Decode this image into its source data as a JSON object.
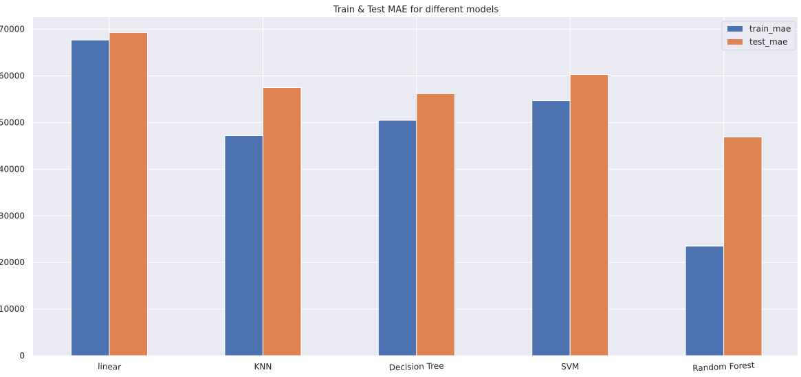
{
  "chart_data": {
    "type": "bar",
    "title": "Train & Test MAE for different models",
    "xlabel": "",
    "ylabel": "",
    "categories": [
      "linear",
      "KNN",
      "Decision Tree",
      "SVM",
      "Random Forest"
    ],
    "series": [
      {
        "name": "train_mae",
        "color": "#4c72b0",
        "values": [
          67700,
          47200,
          50500,
          54700,
          23500
        ]
      },
      {
        "name": "test_mae",
        "color": "#dd8452",
        "values": [
          69300,
          57500,
          56200,
          60300,
          46900
        ]
      }
    ],
    "ylim": [
      0,
      72600
    ],
    "yticks": [
      0,
      10000,
      20000,
      30000,
      40000,
      50000,
      60000,
      70000
    ],
    "ytick_labels": [
      "0",
      "10000",
      "20000",
      "30000",
      "40000",
      "50000",
      "60000",
      "70000"
    ],
    "grid": true,
    "legend_position": "top-right",
    "colors": {
      "background": "#eaeaf2",
      "grid": "#ffffff"
    }
  }
}
